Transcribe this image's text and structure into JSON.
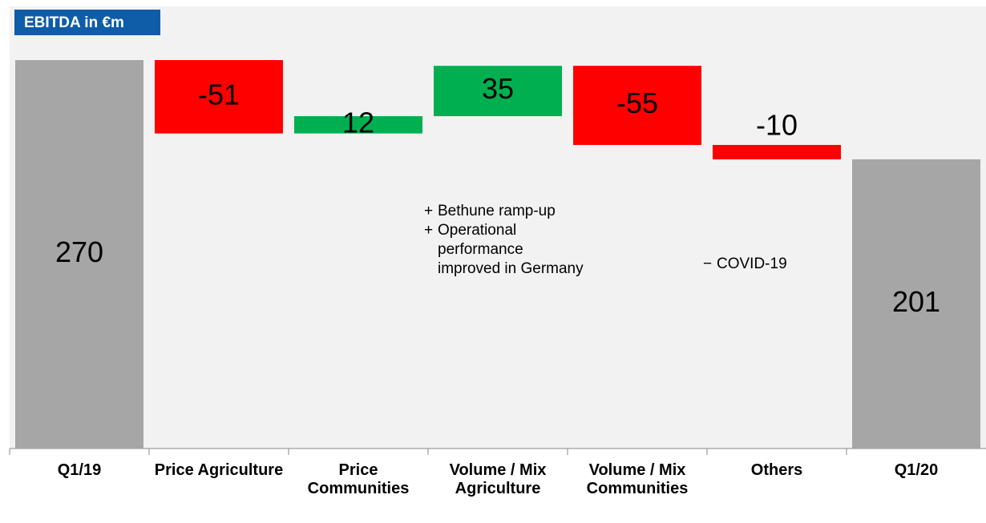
{
  "chart_data": {
    "type": "waterfall",
    "title": "EBITDA in €m",
    "categories": [
      "Q1/19",
      "Price Agriculture",
      "Price Communities",
      "Volume / Mix Agriculture",
      "Volume / Mix Communities",
      "Others",
      "Q1/20"
    ],
    "values": [
      270,
      -51,
      12,
      35,
      -55,
      -10,
      201
    ],
    "measure": [
      "total",
      "relative",
      "relative",
      "relative",
      "relative",
      "relative",
      "total"
    ],
    "colors": {
      "total": "#a6a6a6",
      "increase": "#00b050",
      "decrease": "#ff0000"
    },
    "annotations": [
      {
        "category": 3,
        "items": [
          {
            "marker": "+",
            "text": "Bethune ramp-up"
          },
          {
            "marker": "+",
            "text": "Operational performance improved in Germany"
          }
        ]
      },
      {
        "category": 5,
        "items": [
          {
            "marker": "−",
            "text": "COVID-19"
          }
        ]
      }
    ]
  }
}
